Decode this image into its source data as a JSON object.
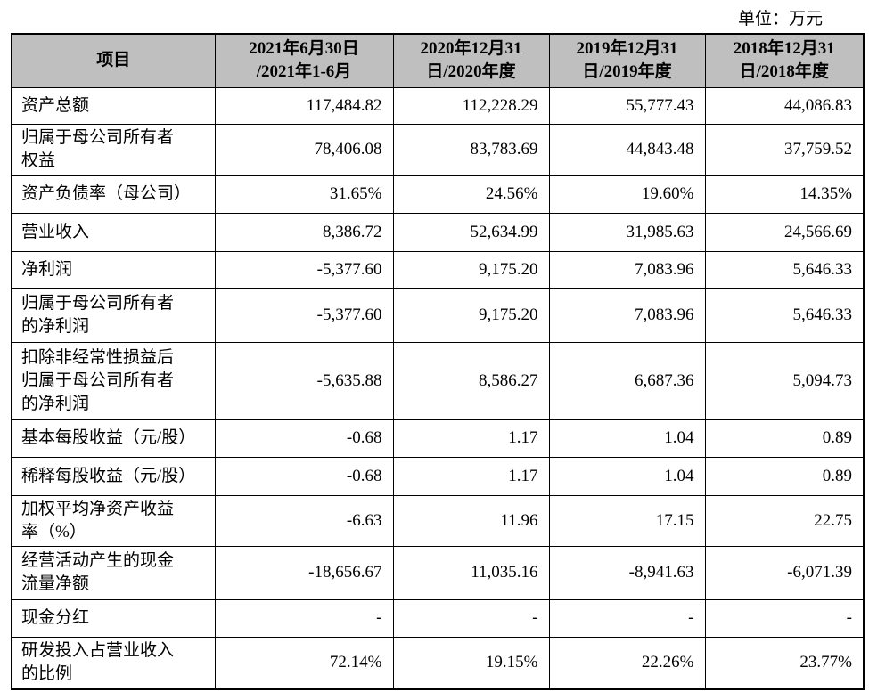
{
  "unit": "单位：万元",
  "table": {
    "header": [
      "项目",
      "2021年6月30日\n/2021年1-6月",
      "2020年12月31\n日/2020年度",
      "2019年12月31\n日/2019年度",
      "2018年12月31\n日/2018年度"
    ],
    "rows": [
      [
        "资产总额",
        "117,484.82",
        "112,228.29",
        "55,777.43",
        "44,086.83"
      ],
      [
        "归属于母公司所有者\n权益",
        "78,406.08",
        "83,783.69",
        "44,843.48",
        "37,759.52"
      ],
      [
        "资产负债率（母公司）",
        "31.65%",
        "24.56%",
        "19.60%",
        "14.35%"
      ],
      [
        "营业收入",
        "8,386.72",
        "52,634.99",
        "31,985.63",
        "24,566.69"
      ],
      [
        "净利润",
        "-5,377.60",
        "9,175.20",
        "7,083.96",
        "5,646.33"
      ],
      [
        "归属于母公司所有者\n的净利润",
        "-5,377.60",
        "9,175.20",
        "7,083.96",
        "5,646.33"
      ],
      [
        "扣除非经常性损益后\n归属于母公司所有者\n的净利润",
        "-5,635.88",
        "8,586.27",
        "6,687.36",
        "5,094.73"
      ],
      [
        "基本每股收益（元/股）",
        "-0.68",
        "1.17",
        "1.04",
        "0.89"
      ],
      [
        "稀释每股收益（元/股）",
        "-0.68",
        "1.17",
        "1.04",
        "0.89"
      ],
      [
        "加权平均净资产收益\n率（%）",
        "-6.63",
        "11.96",
        "17.15",
        "22.75"
      ],
      [
        "经营活动产生的现金\n流量净额",
        "-18,656.67",
        "11,035.16",
        "-8,941.63",
        "-6,071.39"
      ],
      [
        "现金分红",
        "-",
        "-",
        "-",
        "-"
      ],
      [
        "研发投入占营业收入\n的比例",
        "72.14%",
        "19.15%",
        "22.26%",
        "23.77%"
      ]
    ]
  }
}
